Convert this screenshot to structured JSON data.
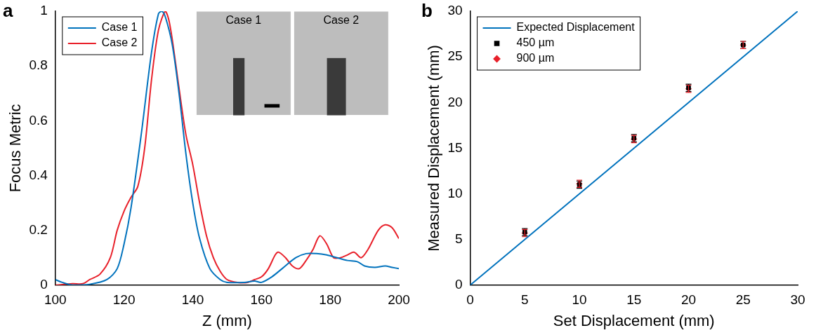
{
  "chart_data": [
    {
      "type": "line",
      "panel": "a",
      "x_label": "Z (mm)",
      "y_label": "Focus Metric",
      "xlim": [
        100,
        200
      ],
      "xticks": [
        100,
        120,
        140,
        160,
        180,
        200
      ],
      "ylim": [
        0,
        1
      ],
      "yticks": [
        0,
        0.2,
        0.4,
        0.6,
        0.8,
        1
      ],
      "grid": false,
      "legend": "upper left",
      "inset_labels": [
        "Case 1",
        "Case 2"
      ],
      "series": [
        {
          "name": "Case 1",
          "color": "#0072bd",
          "type": "line",
          "line_style": "solid",
          "x": [
            100,
            102,
            105,
            110,
            115,
            118,
            120,
            122,
            125,
            128,
            130,
            131,
            132,
            134,
            136,
            138,
            140,
            142,
            145,
            148,
            150,
            155,
            158,
            160,
            163,
            166,
            170,
            173,
            176,
            179,
            182,
            185,
            188,
            190,
            193,
            196,
            198,
            200
          ],
          "values": [
            0.02,
            0.01,
            0,
            0.003,
            0.02,
            0.06,
            0.15,
            0.28,
            0.55,
            0.85,
            0.99,
            1.0,
            0.98,
            0.88,
            0.7,
            0.48,
            0.3,
            0.17,
            0.06,
            0.02,
            0.01,
            0.01,
            0.015,
            0.01,
            0.03,
            0.06,
            0.1,
            0.115,
            0.115,
            0.11,
            0.1,
            0.09,
            0.085,
            0.07,
            0.065,
            0.07,
            0.065,
            0.06
          ]
        },
        {
          "name": "Case 2",
          "color": "#e8202a",
          "type": "line",
          "line_style": "solid",
          "x": [
            100,
            105,
            108,
            110,
            113,
            116,
            118,
            120,
            122,
            124,
            126,
            128,
            130,
            132,
            133,
            134,
            136,
            138,
            140,
            142,
            144,
            146,
            148,
            150,
            153,
            156,
            158,
            160,
            162,
            164,
            165,
            167,
            169,
            171,
            173,
            175,
            177,
            179,
            181,
            183,
            185,
            187,
            189,
            191,
            194,
            196,
            198,
            200
          ],
          "values": [
            0,
            0.005,
            0.005,
            0.02,
            0.04,
            0.1,
            0.2,
            0.27,
            0.32,
            0.36,
            0.5,
            0.75,
            0.93,
            1.0,
            0.97,
            0.9,
            0.72,
            0.55,
            0.44,
            0.3,
            0.18,
            0.1,
            0.05,
            0.02,
            0.01,
            0.01,
            0.02,
            0.03,
            0.06,
            0.11,
            0.12,
            0.1,
            0.07,
            0.06,
            0.09,
            0.13,
            0.18,
            0.15,
            0.1,
            0.1,
            0.11,
            0.12,
            0.1,
            0.13,
            0.2,
            0.22,
            0.21,
            0.17
          ]
        }
      ]
    },
    {
      "type": "scatter",
      "panel": "b",
      "x_label": "Set Displacement (mm)",
      "y_label": "Measured Displacement (mm)",
      "xlim": [
        0,
        30
      ],
      "xticks": [
        0,
        5,
        10,
        15,
        20,
        25,
        30
      ],
      "ylim": [
        0,
        30
      ],
      "yticks": [
        0,
        5,
        10,
        15,
        20,
        25,
        30
      ],
      "grid": false,
      "legend": "upper left",
      "series": [
        {
          "name": "Expected Displacement",
          "color": "#0072bd",
          "type": "line",
          "line_style": "solid",
          "x": [
            0,
            30
          ],
          "values": [
            0,
            30
          ]
        },
        {
          "name": "450 µm",
          "color": "#000000",
          "type": "scatter",
          "marker": "square",
          "x": [
            5,
            10,
            15,
            20,
            25
          ],
          "values": [
            5.8,
            11.0,
            16.1,
            21.6,
            26.3
          ],
          "errors": [
            0.4,
            0.4,
            0.4,
            0.4,
            0.4
          ]
        },
        {
          "name": "900 µm",
          "color": "#e8202a",
          "type": "scatter",
          "marker": "diamond",
          "x": [
            5,
            10,
            15,
            20,
            25
          ],
          "values": [
            5.7,
            11.1,
            16.0,
            21.5,
            26.3
          ],
          "errors": [
            0.4,
            0.4,
            0.4,
            0.4,
            0.4
          ]
        }
      ]
    }
  ]
}
